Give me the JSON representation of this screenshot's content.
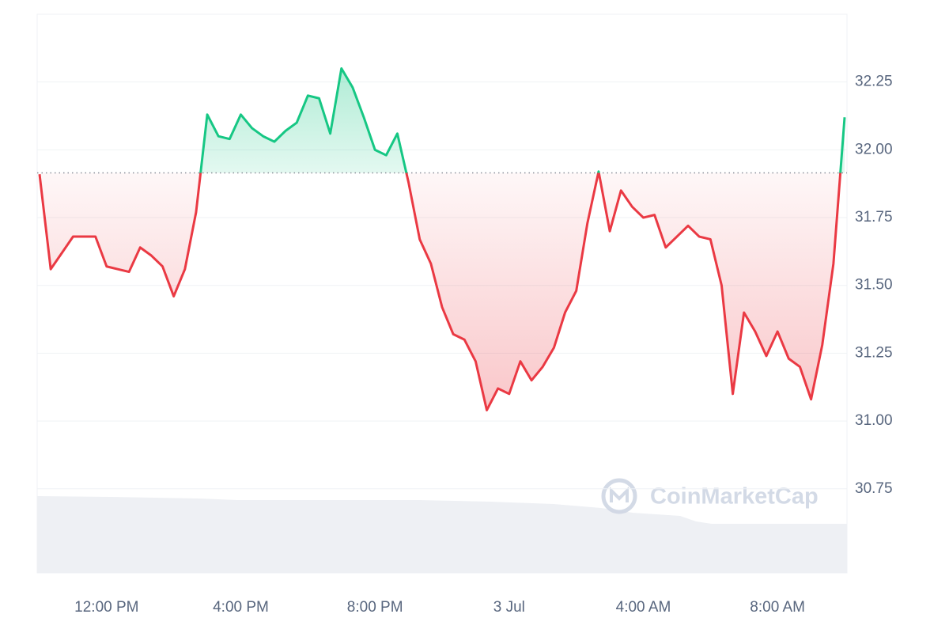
{
  "chart_data": {
    "type": "line",
    "watermark": "CoinMarketCap",
    "categories": [
      null,
      null,
      null,
      null,
      null,
      null,
      "12:00 PM",
      null,
      null,
      null,
      null,
      null,
      null,
      null,
      null,
      null,
      null,
      null,
      "4:00 PM",
      null,
      null,
      null,
      null,
      null,
      null,
      null,
      null,
      null,
      null,
      null,
      "8:00 PM",
      null,
      null,
      null,
      null,
      null,
      null,
      null,
      null,
      null,
      null,
      null,
      "3 Jul",
      null,
      null,
      null,
      null,
      null,
      null,
      null,
      null,
      null,
      null,
      null,
      "4:00 AM",
      null,
      null,
      null,
      null,
      null,
      null,
      null,
      null,
      null,
      null,
      null,
      "8:00 AM",
      null,
      null,
      null,
      null,
      null,
      null
    ],
    "values": [
      31.91,
      31.56,
      31.62,
      31.68,
      31.68,
      31.68,
      31.57,
      31.56,
      31.55,
      31.64,
      31.61,
      31.57,
      31.46,
      31.56,
      31.77,
      32.13,
      32.05,
      32.04,
      32.13,
      32.08,
      32.05,
      32.03,
      32.07,
      32.1,
      32.2,
      32.19,
      32.06,
      32.3,
      32.23,
      32.12,
      32.0,
      31.98,
      32.06,
      31.88,
      31.67,
      31.58,
      31.42,
      31.32,
      31.3,
      31.22,
      31.04,
      31.12,
      31.1,
      31.22,
      31.15,
      31.2,
      31.27,
      31.4,
      31.48,
      31.73,
      31.92,
      31.7,
      31.85,
      31.79,
      31.75,
      31.76,
      31.64,
      31.68,
      31.72,
      31.68,
      31.67,
      31.5,
      31.1,
      31.4,
      31.33,
      31.24,
      31.33,
      31.23,
      31.2,
      31.08,
      31.28,
      31.58,
      32.12
    ],
    "baseline": 31.915,
    "up_color": "#16c784",
    "down_color": "#ea3943",
    "ylim": [
      30.44,
      32.5
    ],
    "yticks": [
      30.75,
      {
        "value": 31,
        "label": "31.00"
      },
      31.25,
      {
        "value": 31.5,
        "label": "31.50"
      },
      31.75,
      {
        "value": 32,
        "label": "32.00"
      },
      32.25
    ],
    "grid": true
  }
}
